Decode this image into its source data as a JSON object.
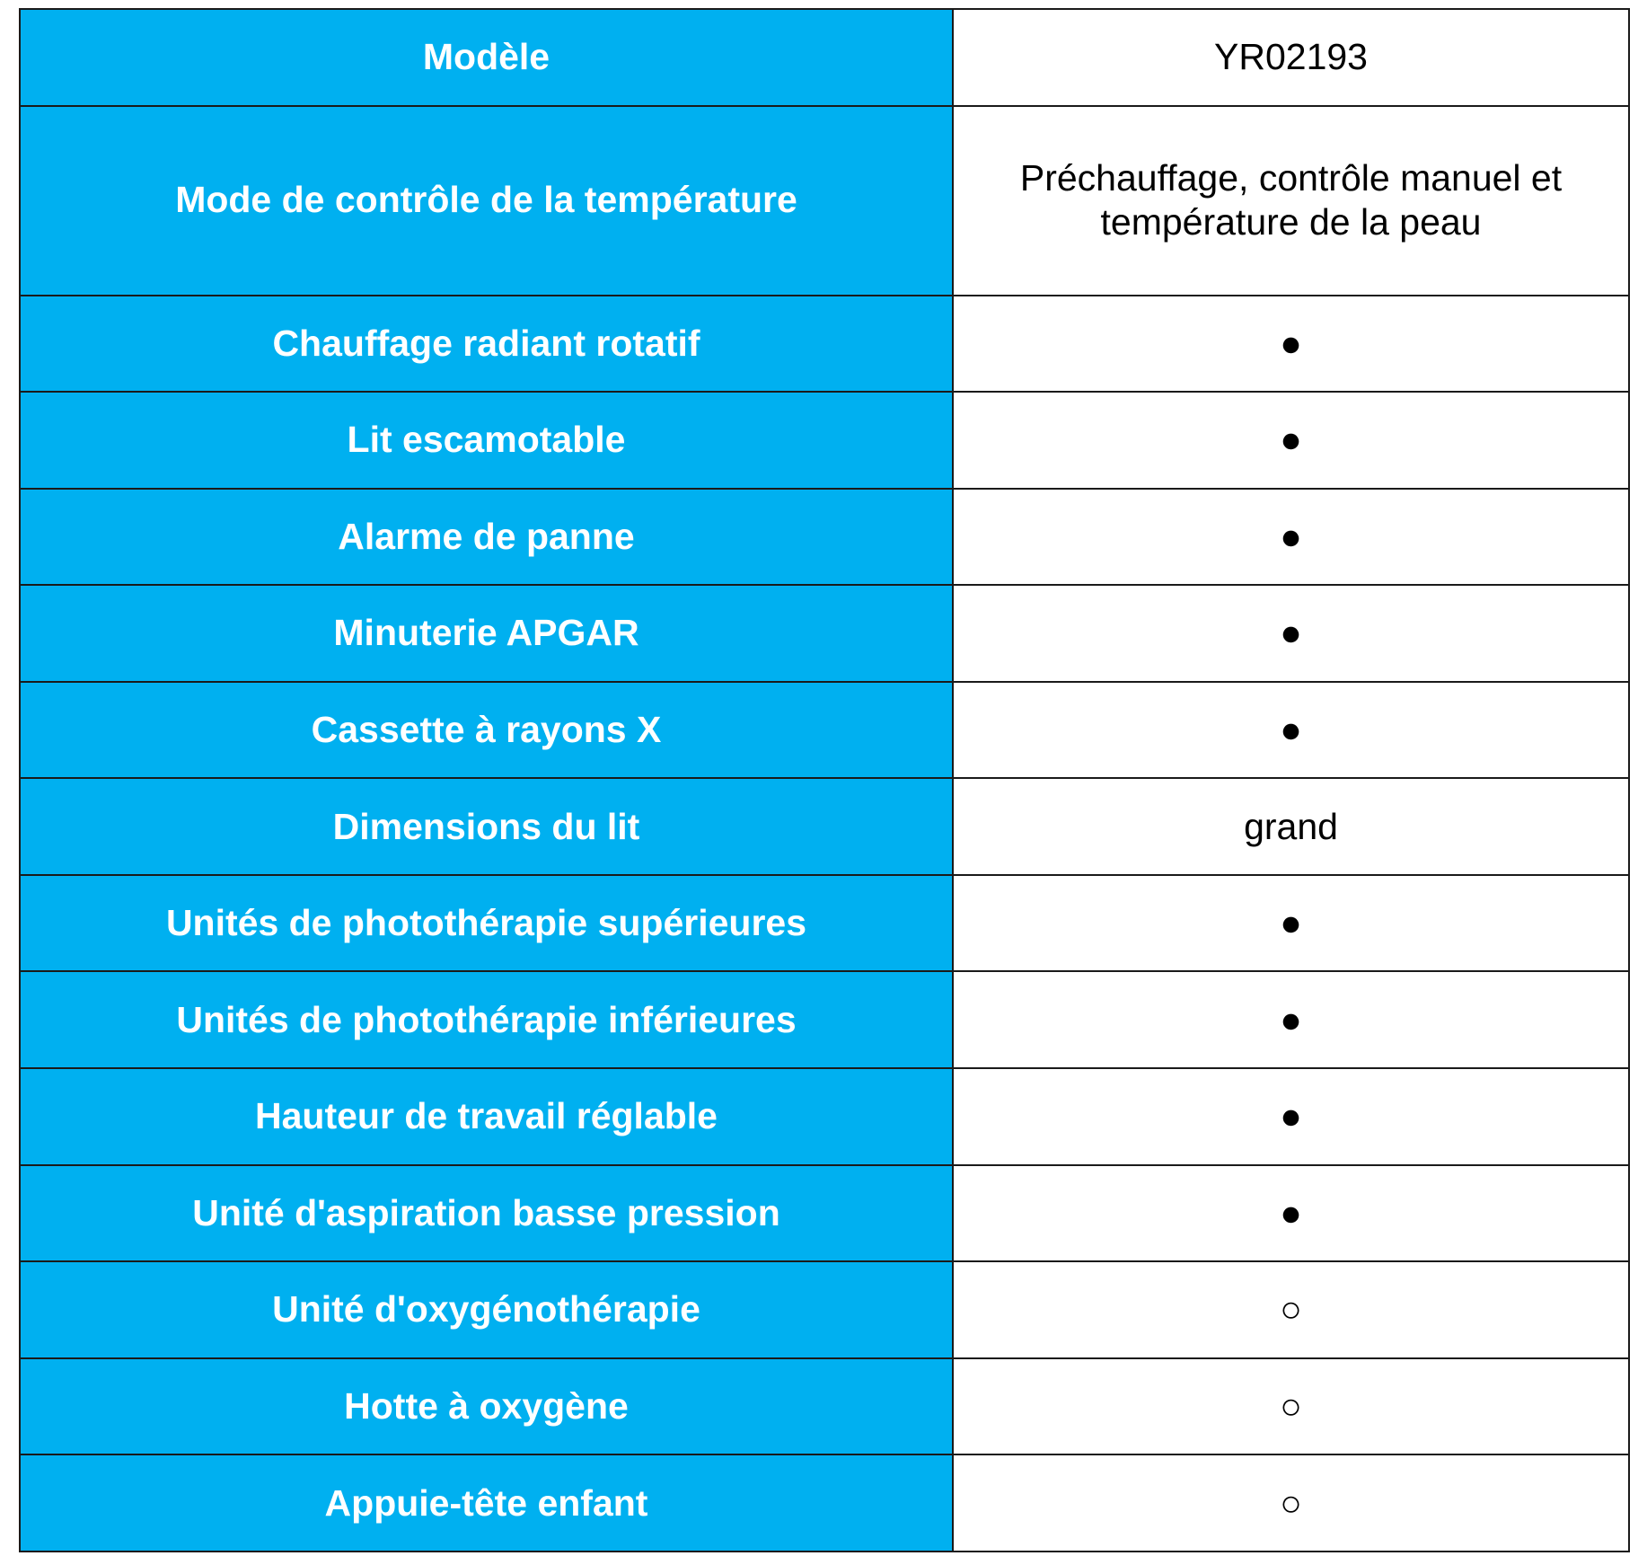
{
  "table": {
    "rows": [
      [
        "Modèle",
        "YR02193"
      ],
      [
        "Mode de contrôle de la température",
        "Préchauffage, contrôle manuel et température de la peau"
      ],
      [
        "Chauffage radiant rotatif",
        "●"
      ],
      [
        "Lit escamotable",
        "●"
      ],
      [
        "Alarme de panne",
        "●"
      ],
      [
        "Minuterie APGAR",
        "●"
      ],
      [
        "Cassette à rayons X",
        "●"
      ],
      [
        "Dimensions du lit",
        "grand"
      ],
      [
        "Unités de photothérapie supérieures",
        "●"
      ],
      [
        "Unités de photothérapie inférieures",
        "●"
      ],
      [
        "Hauteur de travail réglable",
        "●"
      ],
      [
        "Unité d'aspiration basse pression",
        "●"
      ],
      [
        "Unité d'oxygénothérapie",
        "○"
      ],
      [
        "Hotte à oxygène",
        "○"
      ],
      [
        "Appuie-tête enfant",
        "○"
      ]
    ]
  }
}
